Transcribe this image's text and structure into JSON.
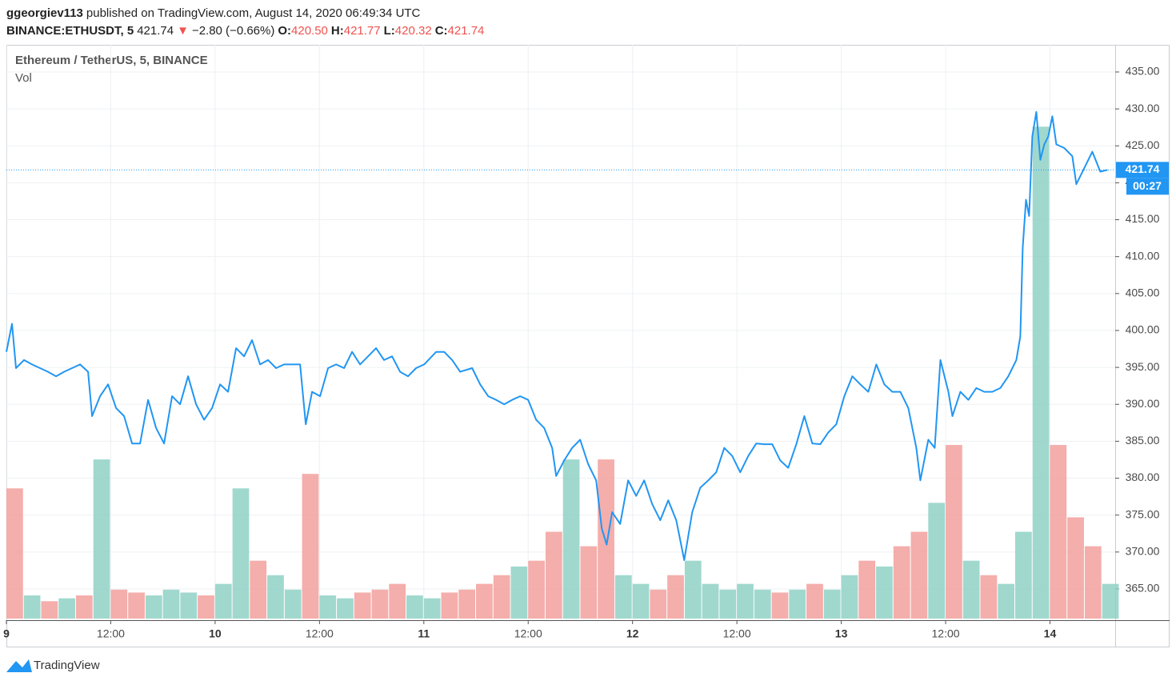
{
  "header": {
    "user": "ggeorgiev113",
    "published": "published on TradingView.com, August 14, 2020 06:49:34 UTC",
    "symbol": "BINANCE:ETHUSDT, 5",
    "last": "421.74",
    "arrow": "▼",
    "change": "−2.80 (−0.66%)",
    "ohlc": [
      {
        "label": "O:",
        "value": "420.50"
      },
      {
        "label": "H:",
        "value": "421.77"
      },
      {
        "label": "L:",
        "value": "420.32"
      },
      {
        "label": "C:",
        "value": "421.74"
      }
    ]
  },
  "chart_data": {
    "type": "line",
    "title": "Ethereum / TetherUS, 5, BINANCE",
    "subtitle": "Vol",
    "color": "#2196f3",
    "grid": true,
    "x": [
      0,
      0.64,
      1.1,
      2.02,
      2.94,
      3.86,
      4.78,
      5.71,
      6.63,
      7.55,
      8.47,
      9.39,
      9.85,
      10.77,
      11.69,
      12.61,
      13.53,
      14.45,
      15.37,
      16.29,
      17.21,
      18.13,
      19.05,
      19.97,
      20.89,
      21.81,
      22.73,
      23.65,
      24.57,
      25.49,
      26.41,
      27.33,
      28.25,
      29.17,
      30.09,
      31.01,
      31.93,
      32.85,
      33.77,
      34.42,
      35.15,
      36.07,
      36.99,
      37.91,
      38.83,
      39.75,
      40.67,
      41.59,
      42.51,
      43.43,
      44.35,
      45.27,
      46.19,
      47.11,
      48.04,
      49.42,
      50.34,
      51.26,
      52.18,
      53.56,
      54.48,
      55.4,
      56.32,
      57.24,
      58.16,
      59.08,
      60,
      60.92,
      61.84,
      62.76,
      63.22,
      64.14,
      65.06,
      65.98,
      66.9,
      67.82,
      68.46,
      69.02,
      69.66,
      70.58,
      71.5,
      72.42,
      73.34,
      74.26,
      75.18,
      76.1,
      77.02,
      77.94,
      78.86,
      79.78,
      80.7,
      81.62,
      82.54,
      83.46,
      84.38,
      85.3,
      86.22,
      87.14,
      88.06,
      88.98,
      89.9,
      90.83,
      91.75,
      92.67,
      93.59,
      94.51,
      95.43,
      96.35,
      97.27,
      98.19,
      99.11,
      100.03,
      100.95,
      101.87,
      102.79,
      103.71,
      104.63,
      105.09,
      106.01,
      106.75,
      107.4,
      108.32,
      108.78,
      109.7,
      110.61,
      111.53,
      112.45,
      113.37,
      114.29,
      115.21,
      116.13,
      116.59,
      116.87,
      117.24,
      117.6,
      117.97,
      118.43,
      118.89,
      119.35,
      119.81,
      120.27,
      120.73,
      121.65,
      122.57,
      123.03,
      123.95,
      124.87,
      125.79,
      126.62
    ],
    "values": [
      397.1,
      400.9,
      394.9,
      396.0,
      395.4,
      394.9,
      394.4,
      393.8,
      394.4,
      394.9,
      395.4,
      394.4,
      388.4,
      391.1,
      392.7,
      389.5,
      388.4,
      384.7,
      384.7,
      390.6,
      386.8,
      384.7,
      391.1,
      390.0,
      393.8,
      390.0,
      387.9,
      389.5,
      392.7,
      391.7,
      397.6,
      396.5,
      398.7,
      395.4,
      396.0,
      394.9,
      395.4,
      395.4,
      395.4,
      387.3,
      391.7,
      391.1,
      394.9,
      395.4,
      394.9,
      397.1,
      395.4,
      396.5,
      397.6,
      396.0,
      396.5,
      394.4,
      393.8,
      394.9,
      395.4,
      397.1,
      397.1,
      396.0,
      394.4,
      394.9,
      392.7,
      391.1,
      390.6,
      390.0,
      390.6,
      391.1,
      390.6,
      387.9,
      386.8,
      384.1,
      380.3,
      382.4,
      384.1,
      385.2,
      381.9,
      379.7,
      373.2,
      371.0,
      375.4,
      373.8,
      379.7,
      377.6,
      379.7,
      376.5,
      374.3,
      377.0,
      374.3,
      368.9,
      375.4,
      378.7,
      379.7,
      380.8,
      384.1,
      383.0,
      380.8,
      383.0,
      384.7,
      384.6,
      384.6,
      382.4,
      381.4,
      384.6,
      388.4,
      384.7,
      384.6,
      386.2,
      387.3,
      391.1,
      393.8,
      392.7,
      391.7,
      395.4,
      392.7,
      391.7,
      391.7,
      389.5,
      384.1,
      379.7,
      385.2,
      384.1,
      396.0,
      391.7,
      388.4,
      391.7,
      390.6,
      392.2,
      391.7,
      391.7,
      392.2,
      393.8,
      396.0,
      399.2,
      411.2,
      417.7,
      415.5,
      426.3,
      429.6,
      423.1,
      425.2,
      426.3,
      429.0,
      425.2,
      424.7,
      423.6,
      419.8,
      422.0,
      424.2,
      421.5,
      421.74
    ],
    "xlim": [
      0,
      127.5
    ],
    "xticks": [
      {
        "value": 0,
        "label": "9"
      },
      {
        "value": 12,
        "label": "12:00"
      },
      {
        "value": 24,
        "label": "10"
      },
      {
        "value": 36,
        "label": "12:00"
      },
      {
        "value": 48,
        "label": "11"
      },
      {
        "value": 60,
        "label": "12:00"
      },
      {
        "value": 72,
        "label": "12"
      },
      {
        "value": 84,
        "label": "12:00"
      },
      {
        "value": 96,
        "label": "13"
      },
      {
        "value": 108,
        "label": "12:00"
      },
      {
        "value": 120,
        "label": "14"
      }
    ],
    "ylim": [
      360.77,
      438.68
    ],
    "yticks": [
      {
        "value": 365,
        "label": "365.00"
      },
      {
        "value": 370,
        "label": "370.00"
      },
      {
        "value": 375,
        "label": "375.00"
      },
      {
        "value": 380,
        "label": "380.00"
      },
      {
        "value": 385,
        "label": "385.00"
      },
      {
        "value": 390,
        "label": "390.00"
      },
      {
        "value": 395,
        "label": "395.00"
      },
      {
        "value": 400,
        "label": "400.00"
      },
      {
        "value": 405,
        "label": "405.00"
      },
      {
        "value": 410,
        "label": "410.00"
      },
      {
        "value": 415,
        "label": "415.00"
      },
      {
        "value": 420,
        "label": "420.00"
      },
      {
        "value": 425,
        "label": "425.00"
      },
      {
        "value": 430,
        "label": "430.00"
      },
      {
        "value": 435,
        "label": "435.00"
      }
    ],
    "countdown": "00:27",
    "volume": {
      "up_color": "#8fd1c6",
      "down_color": "#f2a09c",
      "ylim": [
        0,
        190
      ],
      "x": [
        0,
        2,
        4,
        6,
        8,
        10,
        12,
        14,
        16,
        18,
        20,
        22,
        24,
        26,
        28,
        30,
        32,
        34,
        36,
        38,
        40,
        42,
        44,
        46,
        48,
        50,
        52,
        54,
        56,
        58,
        60,
        62,
        64,
        66,
        68,
        70,
        72,
        74,
        76,
        78,
        80,
        82,
        84,
        86,
        88,
        90,
        92,
        94,
        96,
        98,
        100,
        102,
        104,
        106,
        108,
        110,
        112,
        114,
        116,
        118,
        120,
        122,
        124,
        126
      ],
      "values": [
        45,
        8,
        6,
        7,
        8,
        55,
        10,
        9,
        8,
        10,
        9,
        8,
        12,
        45,
        20,
        15,
        10,
        50,
        8,
        7,
        9,
        10,
        12,
        8,
        7,
        9,
        10,
        12,
        15,
        18,
        20,
        30,
        55,
        25,
        55,
        15,
        12,
        10,
        15,
        20,
        12,
        10,
        12,
        10,
        9,
        10,
        12,
        10,
        15,
        20,
        18,
        25,
        30,
        40,
        60,
        20,
        15,
        12,
        30,
        170,
        60,
        35,
        25,
        12
      ]
    }
  },
  "footer": {
    "brand": "TradingView"
  }
}
